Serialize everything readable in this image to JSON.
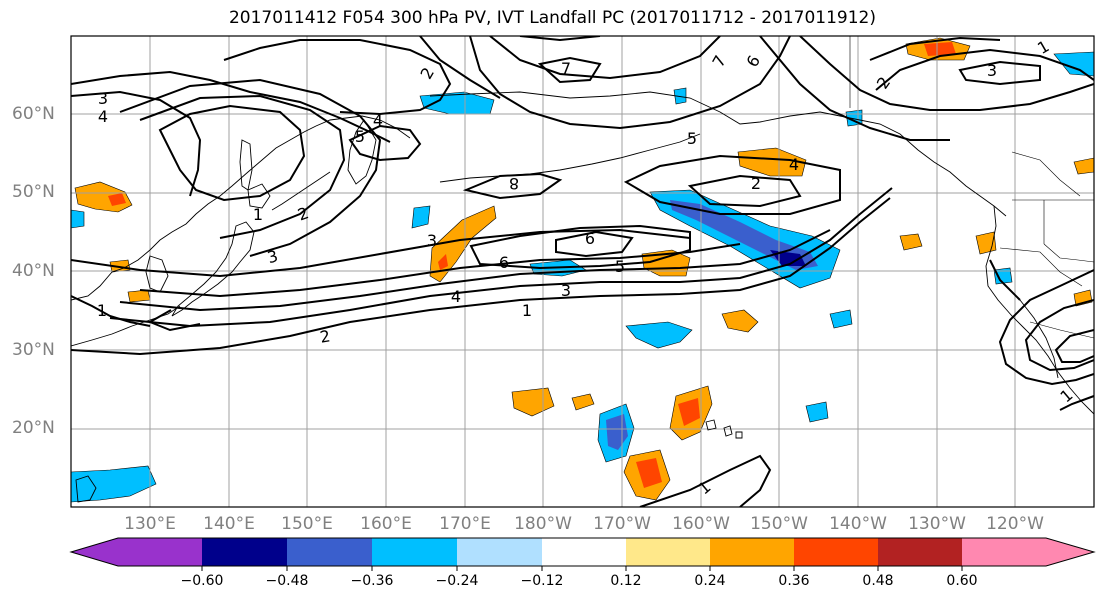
{
  "title": "2017011412 F054 300 hPa PV, IVT Landfall PC (2017011712 - 2017011912)",
  "latitude_labels": [
    "60°N",
    "50°N",
    "40°N",
    "30°N",
    "20°N"
  ],
  "longitude_labels": [
    "130°E",
    "140°E",
    "150°E",
    "160°E",
    "170°E",
    "180°W",
    "170°W",
    "160°W",
    "150°W",
    "140°W",
    "130°W",
    "120°W"
  ],
  "colorbar": {
    "ticks": [
      "−0.60",
      "−0.48",
      "−0.36",
      "−0.24",
      "−0.12",
      "0.12",
      "0.24",
      "0.36",
      "0.48",
      "0.60"
    ],
    "colors": [
      "#9932cc",
      "#00008b",
      "#3a5fcd",
      "#00bfff",
      "#b0e0ff",
      "#ffffff",
      "#ffe88a",
      "#ffa500",
      "#ff4500",
      "#b22222",
      "#ff88b0"
    ]
  },
  "contour_labels": [
    "3",
    "4",
    "2",
    "7",
    "7",
    "6",
    "2",
    "1",
    "4",
    "5",
    "5",
    "4",
    "3",
    "2",
    "1",
    "2",
    "3",
    "8",
    "3",
    "6",
    "6",
    "5",
    "4",
    "3",
    "1",
    "2",
    "1",
    "1",
    "1"
  ],
  "colors": {
    "frame": "#000000",
    "grid": "#a0a0a0",
    "coast": "#000000"
  }
}
